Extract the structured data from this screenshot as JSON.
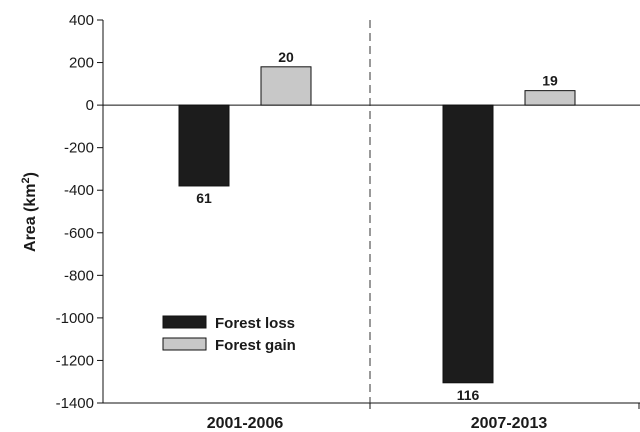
{
  "chart_data": {
    "type": "bar",
    "ylabel": "Area (km",
    "ylabel_sup": "2",
    "ylabel_close": ")",
    "ylim": [
      -1400,
      400
    ],
    "yticks": [
      400,
      200,
      0,
      -200,
      -400,
      -600,
      -800,
      -1000,
      -1200,
      -1400
    ],
    "categories": [
      "2001-2006",
      "2007-2013"
    ],
    "series": [
      {
        "name": "Forest loss",
        "color": "#1c1c1c",
        "values": [
          -380,
          -1305
        ],
        "labels": [
          "61",
          "116"
        ]
      },
      {
        "name": "Forest gain",
        "color": "#c8c8c8",
        "values": [
          180,
          68
        ],
        "labels": [
          "20",
          "19"
        ]
      }
    ],
    "grid": false,
    "period_separator": "dashed",
    "legend_position": "lower-left"
  }
}
